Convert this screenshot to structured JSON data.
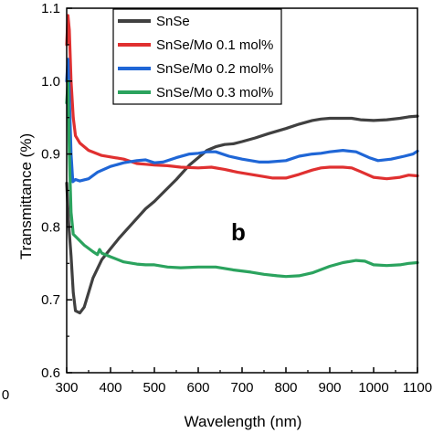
{
  "chart_data": {
    "type": "line",
    "xlabel": "Wavelength (nm)",
    "ylabel": "Transmittance (%)",
    "xlim": [
      300,
      1100
    ],
    "ylim": [
      0.6,
      1.1
    ],
    "x_ticks": [
      300,
      400,
      500,
      600,
      700,
      800,
      900,
      1000,
      1100
    ],
    "y_ticks": [
      0.6,
      0.7,
      0.8,
      0.9,
      1.0,
      1.1
    ],
    "x_tick_labels": [
      "300",
      "400",
      "500",
      "600",
      "700",
      "800",
      "900",
      "1000",
      "1100"
    ],
    "y_tick_labels": [
      "0.6",
      "0.7",
      "0.8",
      "0.9",
      "1.0",
      "1.1"
    ],
    "panel_label": "b",
    "stray_text": "0",
    "legend_position": "top-center",
    "grid": false,
    "series": [
      {
        "name": "SnSe",
        "color": "#404040",
        "points": [
          [
            300,
            0.86
          ],
          [
            305,
            0.8
          ],
          [
            310,
            0.76
          ],
          [
            315,
            0.71
          ],
          [
            320,
            0.685
          ],
          [
            330,
            0.682
          ],
          [
            340,
            0.69
          ],
          [
            360,
            0.73
          ],
          [
            380,
            0.755
          ],
          [
            400,
            0.77
          ],
          [
            420,
            0.785
          ],
          [
            450,
            0.805
          ],
          [
            480,
            0.825
          ],
          [
            500,
            0.835
          ],
          [
            520,
            0.847
          ],
          [
            550,
            0.865
          ],
          [
            580,
            0.885
          ],
          [
            600,
            0.895
          ],
          [
            620,
            0.905
          ],
          [
            640,
            0.91
          ],
          [
            660,
            0.913
          ],
          [
            680,
            0.914
          ],
          [
            700,
            0.917
          ],
          [
            730,
            0.922
          ],
          [
            760,
            0.928
          ],
          [
            800,
            0.935
          ],
          [
            830,
            0.941
          ],
          [
            860,
            0.946
          ],
          [
            880,
            0.948
          ],
          [
            900,
            0.949
          ],
          [
            930,
            0.949
          ],
          [
            950,
            0.949
          ],
          [
            970,
            0.947
          ],
          [
            1000,
            0.946
          ],
          [
            1030,
            0.947
          ],
          [
            1060,
            0.949
          ],
          [
            1080,
            0.951
          ],
          [
            1100,
            0.952
          ]
        ]
      },
      {
        "name": "SnSe/Mo 0.1 mol%",
        "color": "#e03030",
        "points": [
          [
            300,
            1.05
          ],
          [
            303,
            1.09
          ],
          [
            306,
            1.07
          ],
          [
            310,
            1.0
          ],
          [
            315,
            0.95
          ],
          [
            320,
            0.925
          ],
          [
            330,
            0.915
          ],
          [
            350,
            0.905
          ],
          [
            380,
            0.898
          ],
          [
            400,
            0.896
          ],
          [
            430,
            0.893
          ],
          [
            460,
            0.887
          ],
          [
            480,
            0.886
          ],
          [
            500,
            0.885
          ],
          [
            530,
            0.884
          ],
          [
            560,
            0.882
          ],
          [
            600,
            0.881
          ],
          [
            630,
            0.882
          ],
          [
            660,
            0.879
          ],
          [
            690,
            0.875
          ],
          [
            720,
            0.872
          ],
          [
            750,
            0.869
          ],
          [
            770,
            0.867
          ],
          [
            800,
            0.867
          ],
          [
            830,
            0.872
          ],
          [
            860,
            0.878
          ],
          [
            880,
            0.881
          ],
          [
            900,
            0.882
          ],
          [
            930,
            0.882
          ],
          [
            950,
            0.881
          ],
          [
            970,
            0.876
          ],
          [
            1000,
            0.868
          ],
          [
            1030,
            0.866
          ],
          [
            1060,
            0.868
          ],
          [
            1080,
            0.871
          ],
          [
            1100,
            0.87
          ]
        ]
      },
      {
        "name": "SnSe/Mo 0.2 mol%",
        "color": "#1f66d6",
        "points": [
          [
            300,
            1.0
          ],
          [
            303,
            1.03
          ],
          [
            306,
            0.98
          ],
          [
            310,
            0.9
          ],
          [
            314,
            0.862
          ],
          [
            320,
            0.865
          ],
          [
            330,
            0.863
          ],
          [
            350,
            0.866
          ],
          [
            370,
            0.875
          ],
          [
            400,
            0.883
          ],
          [
            430,
            0.888
          ],
          [
            460,
            0.891
          ],
          [
            480,
            0.892
          ],
          [
            500,
            0.888
          ],
          [
            520,
            0.889
          ],
          [
            550,
            0.895
          ],
          [
            580,
            0.9
          ],
          [
            600,
            0.901
          ],
          [
            620,
            0.903
          ],
          [
            640,
            0.903
          ],
          [
            670,
            0.897
          ],
          [
            700,
            0.893
          ],
          [
            720,
            0.891
          ],
          [
            740,
            0.889
          ],
          [
            760,
            0.889
          ],
          [
            800,
            0.891
          ],
          [
            830,
            0.897
          ],
          [
            860,
            0.9
          ],
          [
            880,
            0.901
          ],
          [
            900,
            0.903
          ],
          [
            930,
            0.905
          ],
          [
            960,
            0.903
          ],
          [
            990,
            0.895
          ],
          [
            1010,
            0.891
          ],
          [
            1040,
            0.893
          ],
          [
            1070,
            0.897
          ],
          [
            1090,
            0.9
          ],
          [
            1100,
            0.904
          ]
        ]
      },
      {
        "name": "SnSe/Mo 0.3 mol%",
        "color": "#2ba35e",
        "points": [
          [
            300,
            0.97
          ],
          [
            303,
            1.0
          ],
          [
            306,
            0.9
          ],
          [
            310,
            0.82
          ],
          [
            315,
            0.79
          ],
          [
            320,
            0.787
          ],
          [
            340,
            0.775
          ],
          [
            360,
            0.766
          ],
          [
            370,
            0.762
          ],
          [
            375,
            0.769
          ],
          [
            380,
            0.764
          ],
          [
            400,
            0.759
          ],
          [
            430,
            0.752
          ],
          [
            460,
            0.749
          ],
          [
            480,
            0.748
          ],
          [
            500,
            0.748
          ],
          [
            530,
            0.745
          ],
          [
            560,
            0.744
          ],
          [
            600,
            0.745
          ],
          [
            640,
            0.745
          ],
          [
            680,
            0.741
          ],
          [
            720,
            0.738
          ],
          [
            750,
            0.735
          ],
          [
            780,
            0.733
          ],
          [
            800,
            0.732
          ],
          [
            830,
            0.733
          ],
          [
            860,
            0.737
          ],
          [
            900,
            0.746
          ],
          [
            930,
            0.751
          ],
          [
            960,
            0.754
          ],
          [
            980,
            0.753
          ],
          [
            1000,
            0.748
          ],
          [
            1030,
            0.747
          ],
          [
            1060,
            0.748
          ],
          [
            1080,
            0.75
          ],
          [
            1100,
            0.751
          ]
        ]
      }
    ]
  }
}
